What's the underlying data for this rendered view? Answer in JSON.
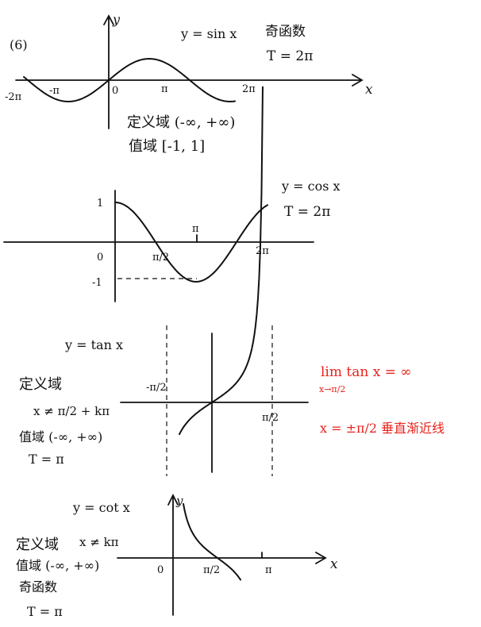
{
  "colors": {
    "ink": "#111111",
    "red_ink": "#e8221c"
  },
  "problem_number": "(6)",
  "sin": {
    "func": "y = sin x",
    "parity": "奇函数",
    "period": "T = 2π",
    "y_axis": "y",
    "x_axis": "x",
    "ticks": [
      "-2π",
      "-π",
      "0",
      "π",
      "2π"
    ],
    "domain": "定义域 (-∞, +∞)",
    "range": "值域 [-1, 1]"
  },
  "cos": {
    "func": "y = cos x",
    "period": "T = 2π",
    "ticks": [
      "0",
      "π/2",
      "π",
      "2π"
    ],
    "y_ticks": [
      "1",
      "-1"
    ]
  },
  "tan": {
    "func": "y = tan x",
    "domain_label": "定义域",
    "domain_value": "x ≠ π/2 + kπ",
    "range": "值域 (-∞, +∞)",
    "period": "T = π",
    "ticks": [
      "-π/2",
      "π/2"
    ],
    "limit_expr": "lim tan x = ∞",
    "limit_sub": "x→π/2",
    "asymptote": "x = ±π/2  垂直渐近线"
  },
  "cot": {
    "func": "y = cot x",
    "domain_label": "定义域",
    "domain_value": "x ≠ kπ",
    "range": "值域 (-∞, +∞)",
    "parity": "奇函数",
    "period": "T = π",
    "y_axis": "y",
    "x_axis": "x",
    "ticks": [
      "0",
      "π/2",
      "π"
    ]
  }
}
